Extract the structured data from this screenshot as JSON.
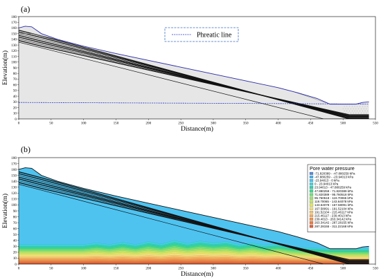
{
  "chart_data": [
    {
      "type": "diagram",
      "panel_label": "(a)",
      "xlabel": "Distance(m)",
      "ylabel": "Elevation(m)",
      "xlim": [
        0,
        550
      ],
      "ylim": [
        0,
        180
      ],
      "x_ticks": [
        0,
        50,
        100,
        150,
        200,
        250,
        300,
        350,
        400,
        450,
        500,
        550
      ],
      "y_ticks": [
        0,
        10,
        20,
        30,
        40,
        50,
        60,
        70,
        80,
        90,
        100,
        110,
        120,
        130,
        140,
        150,
        160,
        170,
        180
      ],
      "legend": {
        "entries": [
          "Phreatic line"
        ],
        "placement": "top-center"
      },
      "surface": {
        "x": [
          0,
          10,
          20,
          35,
          60,
          100,
          150,
          200,
          250,
          300,
          350,
          400,
          430,
          460,
          480,
          520,
          530,
          540
        ],
        "y": [
          160,
          163,
          162,
          150,
          140,
          128,
          115,
          103,
          91,
          79,
          67,
          55,
          46,
          36,
          26,
          26,
          29,
          30
        ]
      },
      "phreatic_line": {
        "x": [
          0,
          400,
          540
        ],
        "y": [
          29,
          27,
          26
        ]
      },
      "colors": {
        "surface": "#2a2aa8",
        "phreatic": "#2233cc",
        "layers": "#111111",
        "soil": "#e6e6e6"
      }
    },
    {
      "type": "diagram",
      "panel_label": "(b)",
      "xlabel": "Distance(m)",
      "ylabel": "Elevation(m)",
      "xlim": [
        0,
        550
      ],
      "ylim": [
        0,
        180
      ],
      "x_ticks": [
        0,
        50,
        100,
        150,
        200,
        250,
        300,
        350,
        400,
        450,
        500,
        550
      ],
      "y_ticks": [
        0,
        10,
        20,
        30,
        40,
        50,
        60,
        70,
        80,
        90,
        100,
        110,
        120,
        130,
        140,
        150,
        160,
        170,
        180
      ],
      "legend": {
        "title": "Pore water pressure",
        "placement": "right",
        "items": [
          {
            "label": "-71.820389 - -47.880259 kPa",
            "color": "#5b8bd6"
          },
          {
            "label": "-47.880259 - -23.94013 kPa",
            "color": "#4fb4ec"
          },
          {
            "label": "-23.94013 - 0 kPa",
            "color": "#4ec3f0"
          },
          {
            "label": "0 - 23.94013 kPa",
            "color": "#3fd4d8"
          },
          {
            "label": "23.94013 - 47.880259 kPa",
            "color": "#33d0b4"
          },
          {
            "label": "47.880259 - 71.820389 kPa",
            "color": "#3fd88e"
          },
          {
            "label": "71.820389 - 95.760518 kPa",
            "color": "#6fe07a"
          },
          {
            "label": "95.760518 - 119.70065 kPa",
            "color": "#9be26e"
          },
          {
            "label": "119.70065 - 143.64078 kPa",
            "color": "#c3e567"
          },
          {
            "label": "143.64078 - 167.58091 kPa",
            "color": "#e3e466"
          },
          {
            "label": "167.58091 - 191.52104 kPa",
            "color": "#f2e080"
          },
          {
            "label": "191.52104 - 215.46117 kPa",
            "color": "#f6c772"
          },
          {
            "label": "215.46117 - 239.4013 kPa",
            "color": "#f4ae5e"
          },
          {
            "label": "239.4013 - 263.34142 kPa",
            "color": "#ef944f"
          },
          {
            "label": "263.34142 - 287.28155 kPa",
            "color": "#e77b45"
          },
          {
            "label": "287.28155 - 311.22168 kPa",
            "color": "#dc6139"
          }
        ]
      },
      "surface": {
        "x": [
          0,
          10,
          20,
          35,
          60,
          100,
          150,
          200,
          250,
          300,
          350,
          400,
          430,
          460,
          480,
          520,
          530,
          540
        ],
        "y": [
          160,
          163,
          162,
          150,
          140,
          128,
          115,
          103,
          91,
          79,
          67,
          55,
          46,
          36,
          26,
          26,
          29,
          30
        ]
      },
      "water_table": {
        "x": [
          0,
          100,
          120,
          140,
          160,
          180,
          200,
          220,
          240,
          260,
          280,
          300,
          320,
          340,
          360,
          380,
          400,
          420,
          440,
          460,
          480,
          500,
          520,
          540
        ],
        "y": [
          33,
          33,
          36,
          33,
          37,
          33,
          38,
          34,
          40,
          35,
          39,
          36,
          38,
          33,
          36,
          32,
          34,
          30,
          28,
          27,
          26,
          26,
          26,
          26
        ]
      },
      "colors": {
        "layers": "#111111"
      }
    }
  ],
  "annotations": {
    "a_panel": "(a)",
    "b_panel": "(b)",
    "phreatic_label": "Phreatic line",
    "pwp_title": "Pore water pressure"
  }
}
